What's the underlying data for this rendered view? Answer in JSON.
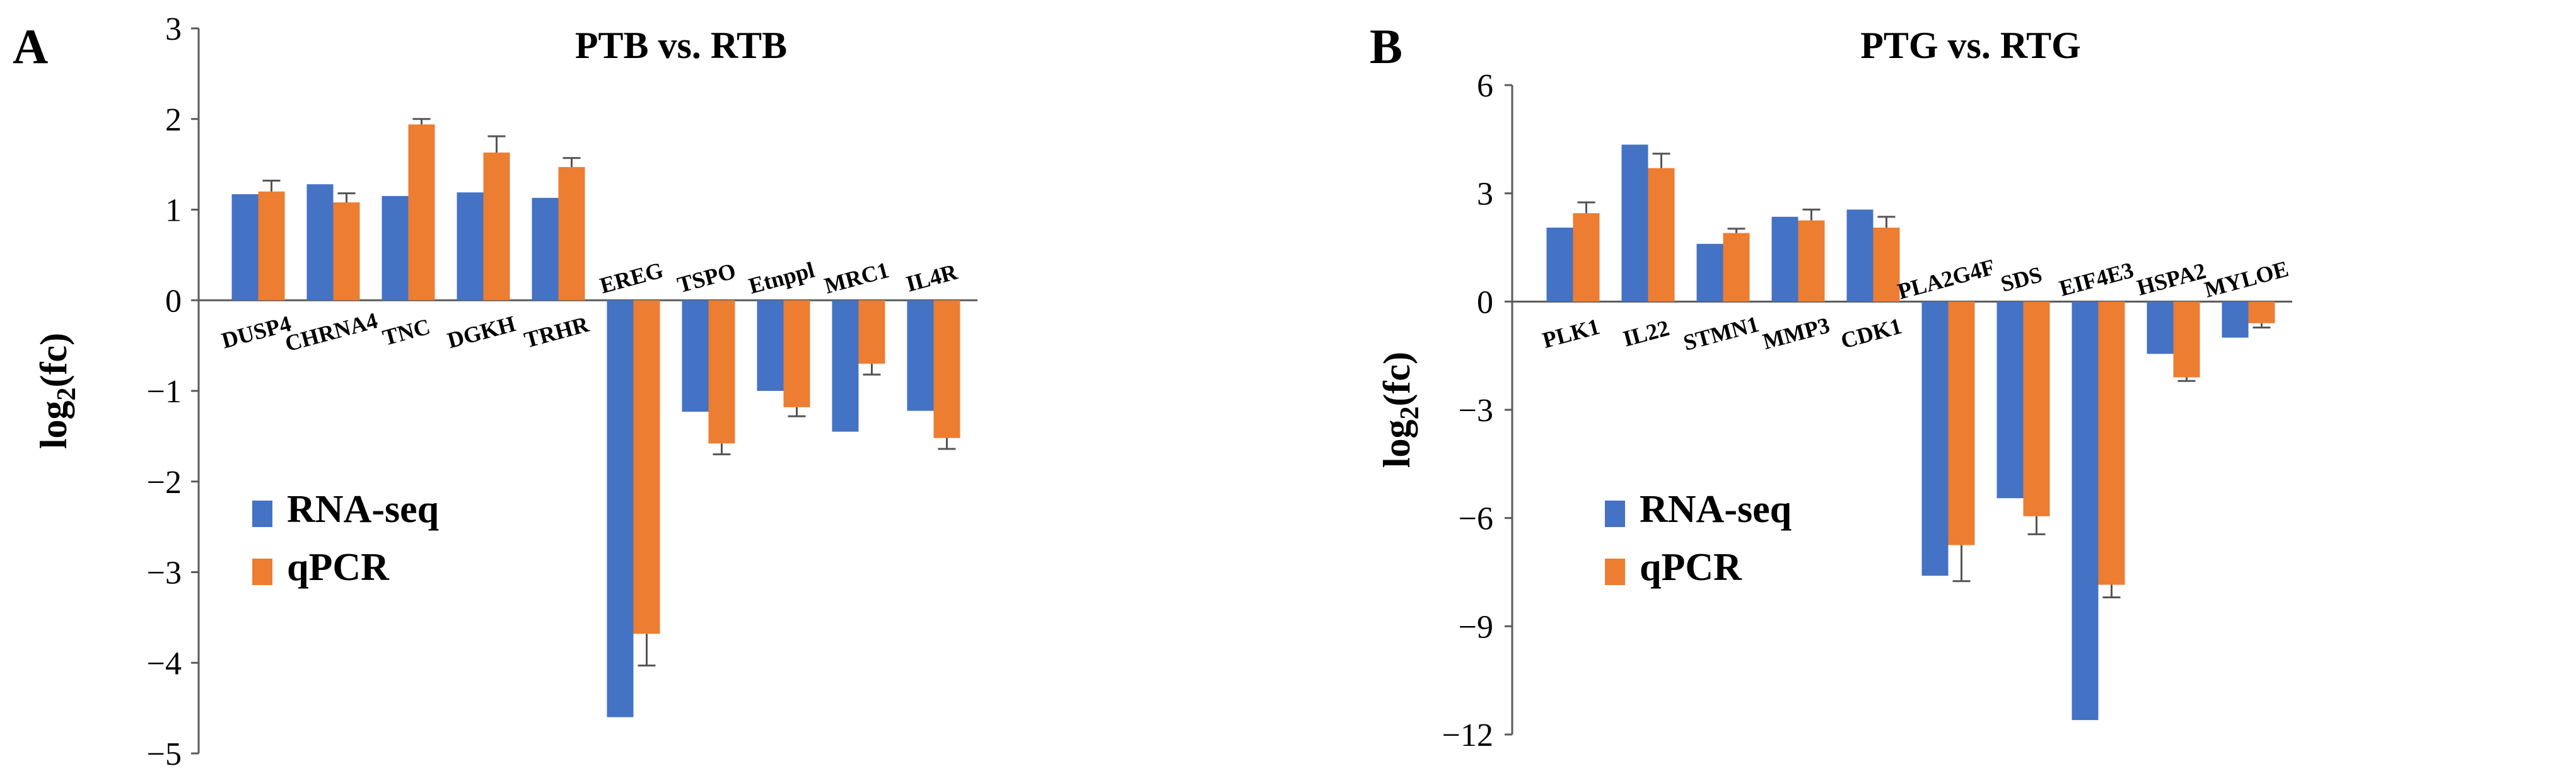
{
  "colors": {
    "rna_seq": "#4472c4",
    "qpcr": "#ed7d31",
    "axis": "#5a5a5a",
    "error_bar": "#555555"
  },
  "chart_data": [
    {
      "type": "bar",
      "panel_letter": "A",
      "title": "PTB vs. RTB",
      "ylabel": "log",
      "ylabel_sub": "2",
      "ylabel_suffix": "(fc)",
      "ylim": [
        -5,
        3
      ],
      "yticks": [
        3,
        2,
        1,
        0,
        -1,
        -2,
        -3,
        -4,
        -5
      ],
      "ytick_labels": [
        "3",
        "2",
        "1",
        "0",
        "−1",
        "−2",
        "−3",
        "−4",
        "−5"
      ],
      "categories": [
        "DUSP4",
        "CHRNA4",
        "TNC",
        "DGKH",
        "TRHR",
        "EREG",
        "TSPO",
        "Etnppl",
        "MRC1",
        "IL4R"
      ],
      "series": [
        {
          "name": "RNA-seq",
          "values": [
            1.17,
            1.28,
            1.15,
            1.19,
            1.13,
            -4.6,
            -1.23,
            -1.0,
            -1.45,
            -1.22
          ]
        },
        {
          "name": "qPCR",
          "values": [
            1.2,
            1.08,
            1.94,
            1.63,
            1.47,
            -3.68,
            -1.58,
            -1.18,
            -0.7,
            -1.52
          ],
          "errors": [
            0.12,
            0.1,
            0.06,
            0.18,
            0.1,
            0.35,
            0.12,
            0.1,
            0.12,
            0.12
          ]
        }
      ],
      "legend": [
        "RNA-seq",
        "qPCR"
      ],
      "legend_position": "bottom-left"
    },
    {
      "type": "bar",
      "panel_letter": "B",
      "title": "PTG vs. RTG",
      "ylabel": "log",
      "ylabel_sub": "2",
      "ylabel_suffix": "(fc)",
      "ylim": [
        -12,
        6
      ],
      "yticks": [
        6,
        3,
        0,
        -3,
        -6,
        -9,
        -12
      ],
      "ytick_labels": [
        "6",
        "3",
        "0",
        "−3",
        "−6",
        "−9",
        "−12"
      ],
      "categories": [
        "PLK1",
        "IL22",
        "STMN1",
        "MMP3",
        "CDK1",
        "PLA2G4F",
        "SDS",
        "EIF4E3",
        "HSPA2",
        "MYLOE"
      ],
      "series": [
        {
          "name": "RNA-seq",
          "values": [
            2.05,
            4.35,
            1.6,
            2.35,
            2.55,
            -7.6,
            -5.45,
            -11.6,
            -1.45,
            -1.0
          ]
        },
        {
          "name": "qPCR",
          "values": [
            2.45,
            3.7,
            1.9,
            2.25,
            2.05,
            -6.75,
            -5.95,
            -7.85,
            -2.1,
            -0.6
          ],
          "errors": [
            0.3,
            0.4,
            0.12,
            0.3,
            0.3,
            1.0,
            0.5,
            0.35,
            0.1,
            0.12
          ]
        }
      ],
      "legend": [
        "RNA-seq",
        "qPCR"
      ],
      "legend_position": "bottom-left"
    }
  ]
}
